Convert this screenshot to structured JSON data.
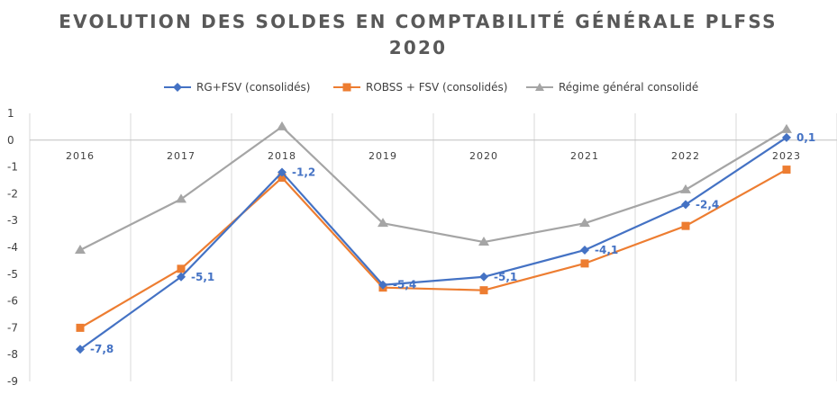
{
  "chart_data": {
    "type": "line",
    "title": "EVOLUTION DES SOLDES EN COMPTABILITÉ GÉNÉRALE PLFSS",
    "subtitle": "2020",
    "categories": [
      "2016",
      "2017",
      "2018",
      "2019",
      "2020",
      "2021",
      "2022",
      "2023"
    ],
    "y_ticks": [
      "1",
      "0",
      "-1",
      "-2",
      "-3",
      "-4",
      "-5",
      "-6",
      "-7",
      "-8",
      "-9"
    ],
    "ylim": [
      -9,
      1
    ],
    "grid": "vertical",
    "legend_position": "top",
    "series": [
      {
        "name": "RG+FSV (consolidés)",
        "color": "#4472C4",
        "marker": "diamond",
        "values": [
          -7.8,
          -5.1,
          -1.2,
          -5.4,
          -5.1,
          -4.1,
          -2.4,
          0.1
        ],
        "labels": [
          "-7,8",
          "-5,1",
          "-1,2",
          "-5,4",
          "-5,1",
          "-4,1",
          "-2,4",
          "0,1"
        ]
      },
      {
        "name": "ROBSS + FSV (consolidés)",
        "color": "#ED7D31",
        "marker": "square",
        "values": [
          -7.0,
          -4.8,
          -1.4,
          -5.5,
          -5.6,
          -4.6,
          -3.2,
          -1.1
        ]
      },
      {
        "name": "Régime général consolidé",
        "color": "#A5A5A5",
        "marker": "triangle",
        "values": [
          -4.1,
          -2.2,
          0.5,
          -3.1,
          -3.8,
          -3.1,
          -1.85,
          0.4
        ]
      }
    ]
  }
}
